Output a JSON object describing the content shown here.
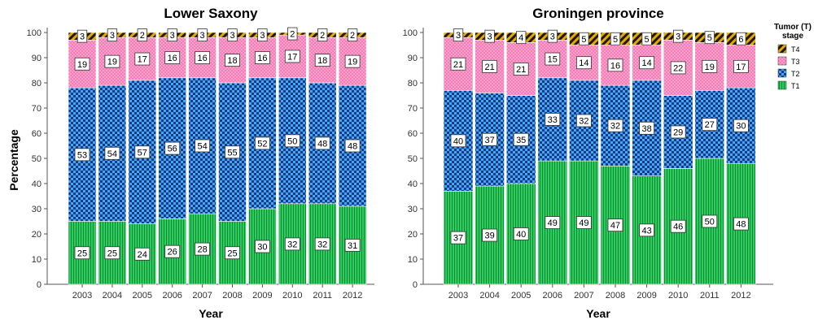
{
  "ylabel": "Percentage",
  "legend": {
    "title_line1": "Tumor (T)",
    "title_line2": "stage",
    "entries": [
      {
        "label": "T4",
        "color": "#1a1a1a",
        "accent": "#e8a800"
      },
      {
        "label": "T3",
        "color": "#f47fb8",
        "accent": "#ffffff"
      },
      {
        "label": "T2",
        "color": "#1f3a7a",
        "accent": "#3fa7ff"
      },
      {
        "label": "T1",
        "color": "#2ecc5a",
        "accent": "#0f7a2e"
      }
    ]
  },
  "chart_data": [
    {
      "type": "bar",
      "stacked": true,
      "title": "Lower Saxony",
      "xlabel": "Year",
      "ylabel": "Percentage",
      "ylim": [
        0,
        100
      ],
      "yticks": [
        0,
        10,
        20,
        30,
        40,
        50,
        60,
        70,
        80,
        90,
        100
      ],
      "categories": [
        "2003",
        "2004",
        "2005",
        "2006",
        "2007",
        "2008",
        "2009",
        "2010",
        "2011",
        "2012"
      ],
      "series": [
        {
          "name": "T1",
          "values": [
            25,
            25,
            24,
            26,
            28,
            25,
            30,
            32,
            32,
            31
          ]
        },
        {
          "name": "T2",
          "values": [
            53,
            54,
            57,
            56,
            54,
            55,
            52,
            50,
            48,
            48
          ]
        },
        {
          "name": "T3",
          "values": [
            19,
            19,
            17,
            16,
            16,
            18,
            16,
            17,
            18,
            19
          ]
        },
        {
          "name": "T4",
          "values": [
            3,
            3,
            2,
            3,
            3,
            3,
            3,
            2,
            2,
            2
          ]
        }
      ]
    },
    {
      "type": "bar",
      "stacked": true,
      "title": "Groningen province",
      "xlabel": "Year",
      "ylabel": "",
      "ylim": [
        0,
        100
      ],
      "yticks": [
        0,
        10,
        20,
        30,
        40,
        50,
        60,
        70,
        80,
        90,
        100
      ],
      "categories": [
        "2003",
        "2004",
        "2005",
        "2006",
        "2007",
        "2008",
        "2009",
        "2010",
        "2011",
        "2012"
      ],
      "series": [
        {
          "name": "T1",
          "values": [
            37,
            39,
            40,
            49,
            49,
            47,
            43,
            46,
            50,
            48
          ]
        },
        {
          "name": "T2",
          "values": [
            40,
            37,
            35,
            33,
            32,
            32,
            38,
            29,
            27,
            30
          ]
        },
        {
          "name": "T3",
          "values": [
            21,
            21,
            21,
            15,
            14,
            16,
            14,
            22,
            19,
            17
          ]
        },
        {
          "name": "T4",
          "values": [
            3,
            3,
            4,
            3,
            5,
            5,
            5,
            3,
            5,
            6
          ]
        }
      ]
    }
  ]
}
